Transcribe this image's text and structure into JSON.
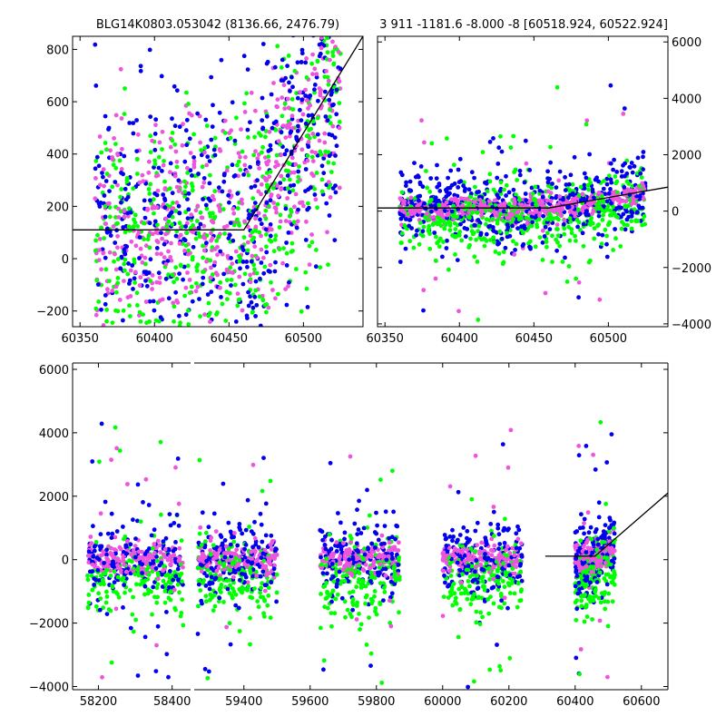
{
  "colors": {
    "blue": "#0000ee",
    "green": "#00ff00",
    "magenta": "#ee55dd",
    "line": "#000000"
  },
  "chart_data": [
    {
      "type": "scatter",
      "panel": "zoom-left",
      "title": "BLG14K0803.053042 (8136.66, 2476.79)",
      "xlim": [
        60345,
        60540
      ],
      "ylim": [
        -260,
        850
      ],
      "xticks": [
        60350,
        60400,
        60450,
        60500
      ],
      "yticks": [
        -200,
        0,
        200,
        400,
        600,
        800
      ],
      "grid": false,
      "series": [
        {
          "color": "blue",
          "kind": "points"
        },
        {
          "color": "green",
          "kind": "points"
        },
        {
          "color": "magenta",
          "kind": "points"
        },
        {
          "color": "line",
          "kind": "model-line",
          "x": [
            60345,
            60460,
            60540
          ],
          "y": [
            110,
            110,
            850
          ]
        }
      ]
    },
    {
      "type": "scatter",
      "panel": "zoom-right",
      "title": "3 911 -1181.6 -8.000 -8 [60518.924, 60522.924]",
      "xlim": [
        60345,
        60540
      ],
      "ylim": [
        -4100,
        6200
      ],
      "xticks": [
        60350,
        60400,
        60450,
        60500
      ],
      "yticks": [
        -4000,
        -2000,
        0,
        2000,
        4000,
        6000
      ],
      "yaxis": "right",
      "grid": false,
      "series": [
        {
          "color": "blue",
          "kind": "points"
        },
        {
          "color": "green",
          "kind": "points"
        },
        {
          "color": "magenta",
          "kind": "points"
        },
        {
          "color": "line",
          "kind": "model-line",
          "x": [
            60345,
            60460,
            60540
          ],
          "y": [
            110,
            110,
            850
          ]
        }
      ]
    },
    {
      "type": "scatter",
      "panel": "full-lightcurve",
      "title": "",
      "broken_x_axis": true,
      "segments": [
        {
          "xlim": [
            58130,
            58450
          ],
          "xticks": [
            58200,
            58400
          ]
        },
        {
          "xlim": [
            59250,
            60680
          ],
          "xticks": [
            59400,
            59600,
            59800,
            60000,
            60200,
            60400,
            60600
          ]
        }
      ],
      "ylim": [
        -4100,
        6200
      ],
      "yticks": [
        -4000,
        -2000,
        0,
        2000,
        4000,
        6000
      ],
      "grid": false,
      "series": [
        {
          "color": "blue",
          "kind": "points"
        },
        {
          "color": "green",
          "kind": "points"
        },
        {
          "color": "magenta",
          "kind": "points"
        },
        {
          "color": "line",
          "kind": "model-line",
          "x": [
            60310,
            60460,
            60680
          ],
          "y": [
            110,
            110,
            2100
          ]
        }
      ]
    }
  ]
}
